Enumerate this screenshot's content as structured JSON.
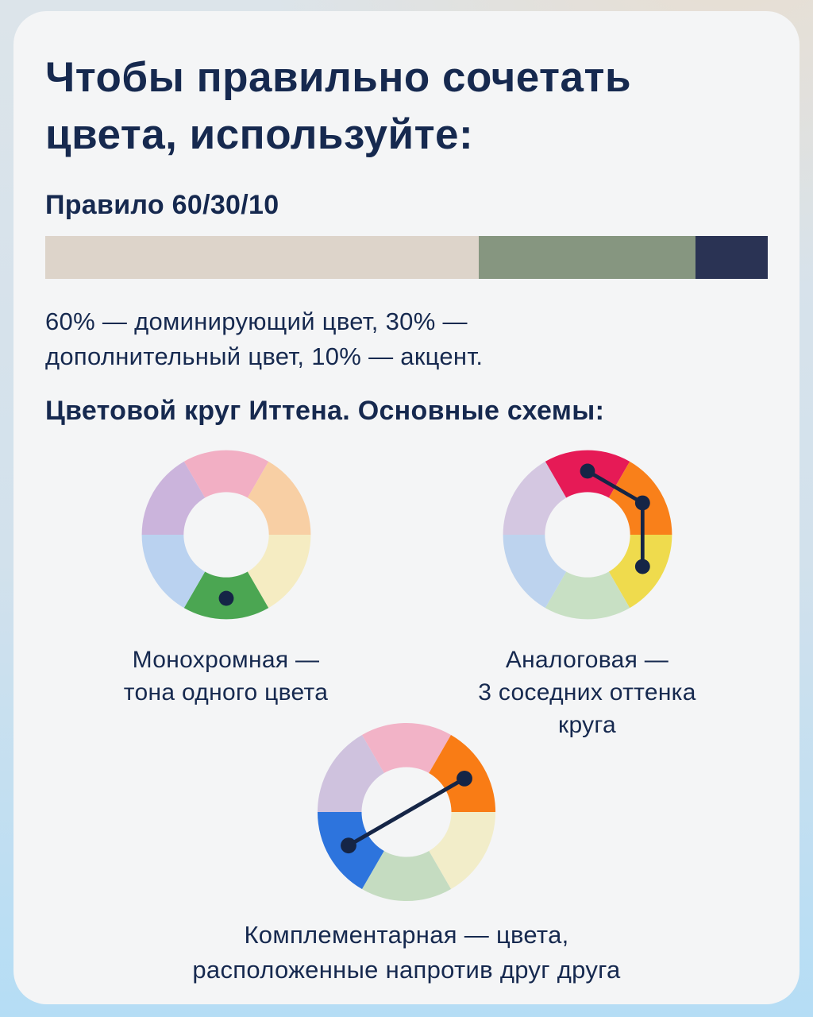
{
  "palette": {
    "background_top_left": "#dce4ea",
    "background_top_right": "#e8ded1",
    "background_bottom": "#b5ddf5",
    "card": "#f4f5f6",
    "text": "#16294f",
    "marker": "#152546"
  },
  "title": "Чтобы правильно сочетать\nцвета, используйте:",
  "rule": {
    "heading": "Правило 60/30/10",
    "bar": [
      {
        "name": "dominant",
        "percent": 60,
        "color": "#ddd4ca"
      },
      {
        "name": "secondary",
        "percent": 30,
        "color": "#869680"
      },
      {
        "name": "accent",
        "percent": 10,
        "color": "#2a3354"
      }
    ],
    "description": "60% — доминирующий цвет, 30% —\nдополнительный цвет, 10% — акцент."
  },
  "wheel_section": {
    "heading": "Цветовой круг Иттена. Основные схемы:",
    "marker_color": "#152546",
    "wheels": [
      {
        "id": "monochrome",
        "caption": "Монохромная —\nтона одного цвета",
        "segments": [
          "#f2afc4",
          "#f8cfa4",
          "#f5ecc2",
          "#4ba652",
          "#bad2f0",
          "#cbb4dc"
        ],
        "marked": [
          3
        ],
        "connect": false
      },
      {
        "id": "analogous",
        "caption": "Аналоговая —\n3 соседних оттенка\nкруга",
        "segments": [
          "#e61a56",
          "#f9801a",
          "#efdb4d",
          "#c8e0c4",
          "#bdd3ee",
          "#d4c7e1"
        ],
        "marked": [
          0,
          1,
          2
        ],
        "connect": true
      },
      {
        "id": "complementary",
        "caption": "Комплементарная — цвета,\nрасположенные напротив друг друга",
        "segments": [
          "#f2b3c7",
          "#f97c15",
          "#f2edc9",
          "#c5dcc1",
          "#2d74dd",
          "#cfc2de"
        ],
        "marked": [
          1,
          4
        ],
        "connect": true
      }
    ]
  }
}
